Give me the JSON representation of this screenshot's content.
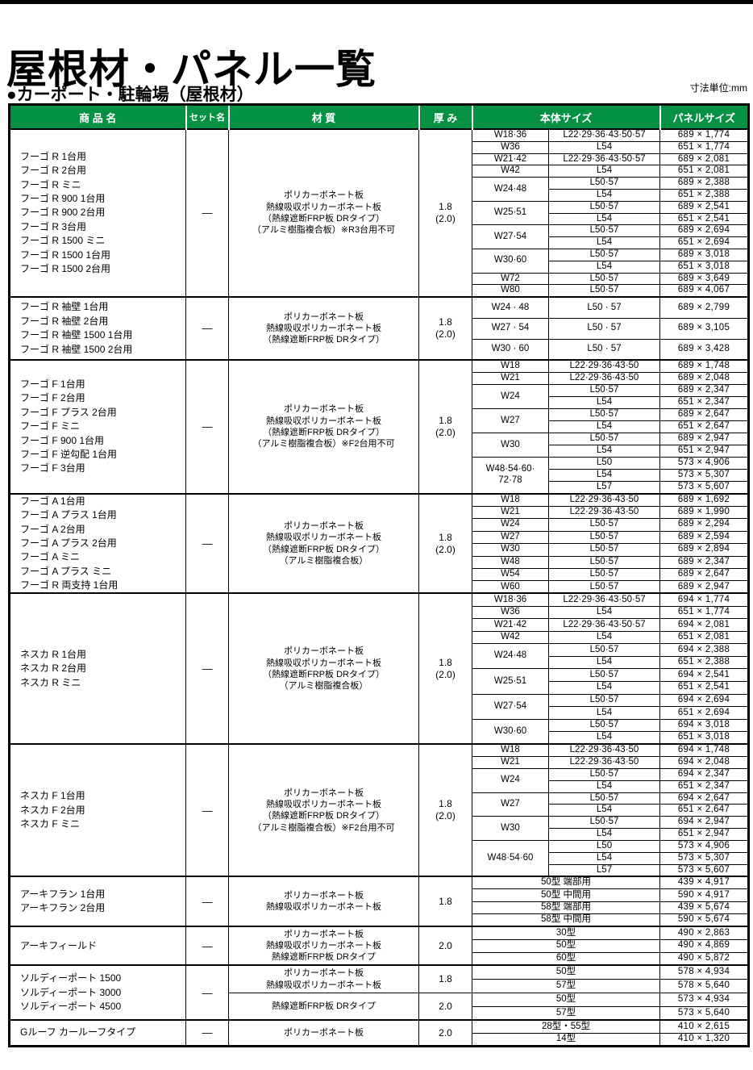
{
  "page": {
    "top_title": "屋根材・パネル一覧",
    "section_title": "●カーポート・駐輪場（屋根材）",
    "unit_note": "寸法単位:mm",
    "colors": {
      "header_bg": "#049144",
      "header_text": "#ffffff",
      "border": "#000000"
    }
  },
  "table": {
    "headers": [
      "商 品 名",
      "セット名",
      "材 質",
      "厚 み",
      "本体サイズ",
      "パネルサイズ"
    ],
    "blocks": [
      {
        "products": [
          "フーゴ R 1台用",
          "フーゴ R 2台用",
          "フーゴ R ミニ",
          "フーゴ R 900 1台用",
          "フーゴ R 900 2台用",
          "フーゴ R 3台用",
          "フーゴ R 1500 ミニ",
          "フーゴ R 1500 1台用",
          "フーゴ R 1500 2台用"
        ],
        "set_name": "—",
        "sections": [
          {
            "material_lines": [
              "ポリカーボネート板",
              "熱線吸収ポリカーボネート板",
              "（熱線遮断FRP板 DRタイプ）",
              "（アルミ樹脂複合板）※R3台用不可"
            ],
            "thickness_lines": [
              "1.8",
              "(2.0)"
            ],
            "groups": [
              {
                "w": "W18·36",
                "rows": [
                  {
                    "l": "L22·29·36·43·50·57",
                    "panel": "689 × 1,774"
                  }
                ]
              },
              {
                "w": "W36",
                "rows": [
                  {
                    "l": "L54",
                    "panel": "651 × 1,774"
                  }
                ]
              },
              {
                "w": "W21·42",
                "rows": [
                  {
                    "l": "L22·29·36·43·50·57",
                    "panel": "689 × 2,081"
                  }
                ]
              },
              {
                "w": "W42",
                "rows": [
                  {
                    "l": "L54",
                    "panel": "651 × 2,081"
                  }
                ]
              },
              {
                "w": "W24·48",
                "rows": [
                  {
                    "l": "L50·57",
                    "panel": "689 × 2,388"
                  },
                  {
                    "l": "L54",
                    "panel": "651 × 2,388"
                  }
                ]
              },
              {
                "w": "W25·51",
                "rows": [
                  {
                    "l": "L50·57",
                    "panel": "689 × 2,541"
                  },
                  {
                    "l": "L54",
                    "panel": "651 × 2,541"
                  }
                ]
              },
              {
                "w": "W27·54",
                "rows": [
                  {
                    "l": "L50·57",
                    "panel": "689 × 2,694"
                  },
                  {
                    "l": "L54",
                    "panel": "651 × 2,694"
                  }
                ]
              },
              {
                "w": "W30·60",
                "rows": [
                  {
                    "l": "L50·57",
                    "panel": "689 × 3,018"
                  },
                  {
                    "l": "L54",
                    "panel": "651 × 3,018"
                  }
                ]
              },
              {
                "w": "W72",
                "rows": [
                  {
                    "l": "L50·57",
                    "panel": "689 × 3,649"
                  }
                ]
              },
              {
                "w": "W80",
                "rows": [
                  {
                    "l": "L50·57",
                    "panel": "689 × 4,067"
                  }
                ]
              }
            ]
          }
        ]
      },
      {
        "products": [
          "フーゴ R 袖壁 1台用",
          "フーゴ R 袖壁 2台用",
          "フーゴ R 袖壁 1500 1台用",
          "フーゴ R 袖壁 1500 2台用"
        ],
        "set_name": "—",
        "sections": [
          {
            "material_lines": [
              "ポリカーボネート板",
              "熱線吸収ポリカーボネート板",
              "（熱線遮断FRP板 DRタイプ）"
            ],
            "thickness_lines": [
              "1.8",
              "(2.0)"
            ],
            "groups": [
              {
                "w": "W24 · 48",
                "rows": [
                  {
                    "l": "L50 · 57",
                    "panel": "689 × 2,799"
                  }
                ]
              },
              {
                "w": "W27 · 54",
                "rows": [
                  {
                    "l": "L50 · 57",
                    "panel": "689 × 3,105"
                  }
                ]
              },
              {
                "w": "W30 · 60",
                "rows": [
                  {
                    "l": "L50 · 57",
                    "panel": "689 × 3,428"
                  }
                ]
              }
            ]
          }
        ]
      },
      {
        "products": [
          "フーゴ F 1台用",
          "フーゴ F 2台用",
          "フーゴ F プラス 2台用",
          "フーゴ F ミニ",
          "フーゴ F 900 1台用",
          "フーゴ F 逆勾配 1台用",
          "フーゴ F 3台用"
        ],
        "set_name": "—",
        "sections": [
          {
            "material_lines": [
              "ポリカーボネート板",
              "熱線吸収ポリカーボネート板",
              "（熱線遮断FRP板 DRタイプ）",
              "（アルミ樹脂複合板）※F2台用不可"
            ],
            "thickness_lines": [
              "1.8",
              "(2.0)"
            ],
            "groups": [
              {
                "w": "W18",
                "rows": [
                  {
                    "l": "L22·29·36·43·50",
                    "panel": "689 × 1,748"
                  }
                ]
              },
              {
                "w": "W21",
                "rows": [
                  {
                    "l": "L22·29·36·43·50",
                    "panel": "689 × 2,048"
                  }
                ]
              },
              {
                "w": "W24",
                "rows": [
                  {
                    "l": "L50·57",
                    "panel": "689 × 2,347"
                  },
                  {
                    "l": "L54",
                    "panel": "651 × 2,347"
                  }
                ]
              },
              {
                "w": "W27",
                "rows": [
                  {
                    "l": "L50·57",
                    "panel": "689 × 2,647"
                  },
                  {
                    "l": "L54",
                    "panel": "651 × 2,647"
                  }
                ]
              },
              {
                "w": "W30",
                "rows": [
                  {
                    "l": "L50·57",
                    "panel": "689 × 2,947"
                  },
                  {
                    "l": "L54",
                    "panel": "651 × 2,947"
                  }
                ]
              },
              {
                "w": "W48·54·60·\n72·78",
                "rows": [
                  {
                    "l": "L50",
                    "panel": "573 × 4,906"
                  },
                  {
                    "l": "L54",
                    "panel": "573 × 5,307"
                  },
                  {
                    "l": "L57",
                    "panel": "573 × 5,607"
                  }
                ]
              }
            ]
          }
        ]
      },
      {
        "products": [
          "フーゴ A 1台用",
          "フーゴ A プラス 1台用",
          "フーゴ A 2台用",
          "フーゴ A プラス 2台用",
          "フーゴ A ミニ",
          "フーゴ A プラス ミニ",
          "フーゴ R 両支持 1台用"
        ],
        "set_name": "—",
        "sections": [
          {
            "material_lines": [
              "ポリカーボネート板",
              "熱線吸収ポリカーボネート板",
              "（熱線遮断FRP板 DRタイプ）",
              "（アルミ樹脂複合板）"
            ],
            "thickness_lines": [
              "1.8",
              "(2.0)"
            ],
            "groups": [
              {
                "w": "W18",
                "rows": [
                  {
                    "l": "L22·29·36·43·50",
                    "panel": "689 × 1,692"
                  }
                ]
              },
              {
                "w": "W21",
                "rows": [
                  {
                    "l": "L22·29·36·43·50",
                    "panel": "689 × 1,990"
                  }
                ]
              },
              {
                "w": "W24",
                "rows": [
                  {
                    "l": "L50·57",
                    "panel": "689 × 2,294"
                  }
                ]
              },
              {
                "w": "W27",
                "rows": [
                  {
                    "l": "L50·57",
                    "panel": "689 × 2,594"
                  }
                ]
              },
              {
                "w": "W30",
                "rows": [
                  {
                    "l": "L50·57",
                    "panel": "689 × 2,894"
                  }
                ]
              },
              {
                "w": "W48",
                "rows": [
                  {
                    "l": "L50·57",
                    "panel": "689 × 2,347"
                  }
                ]
              },
              {
                "w": "W54",
                "rows": [
                  {
                    "l": "L50·57",
                    "panel": "689 × 2,647"
                  }
                ]
              },
              {
                "w": "W60",
                "rows": [
                  {
                    "l": "L50·57",
                    "panel": "689 × 2,947"
                  }
                ]
              }
            ]
          }
        ]
      },
      {
        "products": [
          "ネスカ R 1台用",
          "ネスカ R 2台用",
          "ネスカ R ミニ"
        ],
        "set_name": "—",
        "sections": [
          {
            "material_lines": [
              "ポリカーボネート板",
              "熱線吸収ポリカーボネート板",
              "（熱線遮断FRP板 DRタイプ）",
              "（アルミ樹脂複合板）"
            ],
            "thickness_lines": [
              "1.8",
              "(2.0)"
            ],
            "groups": [
              {
                "w": "W18·36",
                "rows": [
                  {
                    "l": "L22·29·36·43·50·57",
                    "panel": "694 × 1,774"
                  }
                ]
              },
              {
                "w": "W36",
                "rows": [
                  {
                    "l": "L54",
                    "panel": "651 × 1,774"
                  }
                ]
              },
              {
                "w": "W21·42",
                "rows": [
                  {
                    "l": "L22·29·36·43·50·57",
                    "panel": "694 × 2,081"
                  }
                ]
              },
              {
                "w": "W42",
                "rows": [
                  {
                    "l": "L54",
                    "panel": "651 × 2,081"
                  }
                ]
              },
              {
                "w": "W24·48",
                "rows": [
                  {
                    "l": "L50·57",
                    "panel": "694 × 2,388"
                  },
                  {
                    "l": "L54",
                    "panel": "651 × 2,388"
                  }
                ]
              },
              {
                "w": "W25·51",
                "rows": [
                  {
                    "l": "L50·57",
                    "panel": "694 × 2,541"
                  },
                  {
                    "l": "L54",
                    "panel": "651 × 2,541"
                  }
                ]
              },
              {
                "w": "W27·54",
                "rows": [
                  {
                    "l": "L50·57",
                    "panel": "694 × 2,694"
                  },
                  {
                    "l": "L54",
                    "panel": "651 × 2,694"
                  }
                ]
              },
              {
                "w": "W30·60",
                "rows": [
                  {
                    "l": "L50·57",
                    "panel": "694 × 3,018"
                  },
                  {
                    "l": "L54",
                    "panel": "651 × 3,018"
                  }
                ]
              }
            ]
          }
        ]
      },
      {
        "products": [
          "ネスカ F 1台用",
          "ネスカ F 2台用",
          "ネスカ F ミニ"
        ],
        "set_name": "—",
        "sections": [
          {
            "material_lines": [
              "ポリカーボネート板",
              "熱線吸収ポリカーボネート板",
              "（熱線遮断FRP板 DRタイプ）",
              "（アルミ樹脂複合板）※F2台用不可"
            ],
            "thickness_lines": [
              "1.8",
              "(2.0)"
            ],
            "groups": [
              {
                "w": "W18",
                "rows": [
                  {
                    "l": "L22·29·36·43·50",
                    "panel": "694 × 1,748"
                  }
                ]
              },
              {
                "w": "W21",
                "rows": [
                  {
                    "l": "L22·29·36·43·50",
                    "panel": "694 × 2,048"
                  }
                ]
              },
              {
                "w": "W24",
                "rows": [
                  {
                    "l": "L50·57",
                    "panel": "694 × 2,347"
                  },
                  {
                    "l": "L54",
                    "panel": "651 × 2,347"
                  }
                ]
              },
              {
                "w": "W27",
                "rows": [
                  {
                    "l": "L50·57",
                    "panel": "694 × 2,647"
                  },
                  {
                    "l": "L54",
                    "panel": "651 × 2,647"
                  }
                ]
              },
              {
                "w": "W30",
                "rows": [
                  {
                    "l": "L50·57",
                    "panel": "694 × 2,947"
                  },
                  {
                    "l": "L54",
                    "panel": "651 × 2,947"
                  }
                ]
              },
              {
                "w": "W48·54·60",
                "rows": [
                  {
                    "l": "L50",
                    "panel": "573 × 4,906"
                  },
                  {
                    "l": "L54",
                    "panel": "573 × 5,307"
                  },
                  {
                    "l": "L57",
                    "panel": "573 × 5,607"
                  }
                ]
              }
            ]
          }
        ]
      },
      {
        "products": [
          "アーキフラン 1台用",
          "アーキフラン 2台用"
        ],
        "set_name": "—",
        "sections": [
          {
            "material_lines": [
              "ポリカーボネート板",
              "熱線吸収ポリカーボネート板"
            ],
            "thickness_lines": [
              "1.8"
            ],
            "groups": [
              {
                "w": null,
                "rows": [
                  {
                    "l": "50型 端部用",
                    "panel": "439 × 4,917"
                  }
                ]
              },
              {
                "w": null,
                "rows": [
                  {
                    "l": "50型 中間用",
                    "panel": "590 × 4,917"
                  }
                ]
              },
              {
                "w": null,
                "rows": [
                  {
                    "l": "58型 端部用",
                    "panel": "439 × 5,674"
                  }
                ]
              },
              {
                "w": null,
                "rows": [
                  {
                    "l": "58型 中間用",
                    "panel": "590 × 5,674"
                  }
                ]
              }
            ]
          }
        ]
      },
      {
        "products": [
          "アーキフィールド"
        ],
        "set_name": "—",
        "sections": [
          {
            "material_lines": [
              "ポリカーボネート板",
              "熱線吸収ポリカーボネート板",
              "熱線遮断FRP板 DRタイプ"
            ],
            "thickness_lines": [
              "2.0"
            ],
            "groups": [
              {
                "w": null,
                "rows": [
                  {
                    "l": "30型",
                    "panel": "490 × 2,863"
                  }
                ]
              },
              {
                "w": null,
                "rows": [
                  {
                    "l": "50型",
                    "panel": "490 × 4,869"
                  }
                ]
              },
              {
                "w": null,
                "rows": [
                  {
                    "l": "60型",
                    "panel": "490 × 5,872"
                  }
                ]
              }
            ]
          }
        ]
      },
      {
        "products": [
          "ソルディーポート 1500",
          "ソルディーポート 3000",
          "ソルディーポート 4500"
        ],
        "set_name": "—",
        "sections": [
          {
            "material_lines": [
              "ポリカーボネート板",
              "熱線吸収ポリカーボネート板"
            ],
            "thickness_lines": [
              "1.8"
            ],
            "groups": [
              {
                "w": null,
                "rows": [
                  {
                    "l": "50型",
                    "panel": "578 × 4,934"
                  }
                ]
              },
              {
                "w": null,
                "rows": [
                  {
                    "l": "57型",
                    "panel": "578 × 5,640"
                  }
                ]
              }
            ]
          },
          {
            "material_lines": [
              "熱線遮断FRP板 DRタイプ"
            ],
            "thickness_lines": [
              "2.0"
            ],
            "groups": [
              {
                "w": null,
                "rows": [
                  {
                    "l": "50型",
                    "panel": "573 × 4,934"
                  }
                ]
              },
              {
                "w": null,
                "rows": [
                  {
                    "l": "57型",
                    "panel": "573 × 5,640"
                  }
                ]
              }
            ]
          }
        ]
      },
      {
        "products": [
          "Gルーフ カールーフタイプ"
        ],
        "set_name": "—",
        "sections": [
          {
            "material_lines": [
              "ポリカーボネート板"
            ],
            "thickness_lines": [
              "2.0"
            ],
            "groups": [
              {
                "w": null,
                "rows": [
                  {
                    "l": "28型・55型",
                    "panel": "410 × 2,615"
                  }
                ]
              },
              {
                "w": null,
                "rows": [
                  {
                    "l": "14型",
                    "panel": "410 × 1,320"
                  }
                ]
              }
            ]
          }
        ]
      }
    ]
  }
}
